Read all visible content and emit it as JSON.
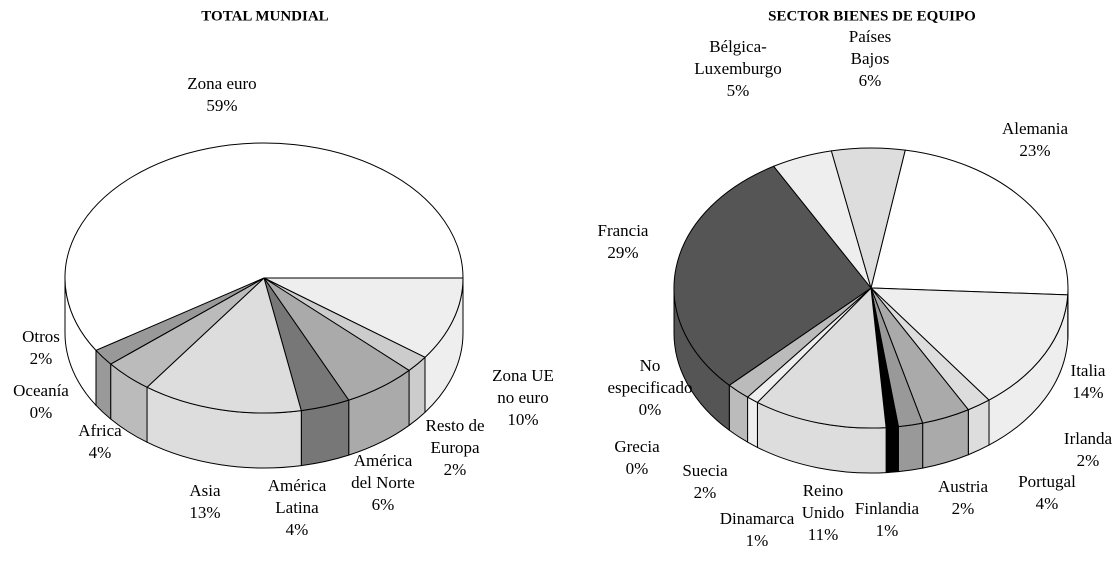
{
  "chart_data": [
    {
      "type": "pie",
      "title": "TOTAL MUNDIAL",
      "categories": [
        "Zona UE\nno euro",
        "Resto de\nEuropa",
        "América\ndel Norte",
        "América\nLatina",
        "Asia",
        "Africa",
        "Oceanía",
        "Otros",
        "Zona euro"
      ],
      "values": [
        10,
        2,
        6,
        4,
        13,
        4,
        0,
        2,
        59
      ],
      "value_labels": [
        "10%",
        "2%",
        "6%",
        "4%",
        "13%",
        "4%",
        "0%",
        "2%",
        "59%"
      ],
      "colors": [
        "#eeeeee",
        "#cccccc",
        "#aaaaaa",
        "#777777",
        "#dddddd",
        "#bbbbbb",
        "#999999",
        "#999999",
        "#ffffff"
      ]
    },
    {
      "type": "pie",
      "title": "SECTOR BIENES DE EQUIPO",
      "categories": [
        "Alemania",
        "Italia",
        "Irlanda",
        "Portugal",
        "Austria",
        "Finlandia",
        "Reino\nUnido",
        "Dinamarca",
        "Suecia",
        "Grecia",
        "No\nespecificado",
        "Francia",
        "Bélgica-\nLuxemburgo",
        "Países\nBajos"
      ],
      "values": [
        23,
        14,
        2,
        4,
        2,
        1,
        11,
        1,
        2,
        0,
        0,
        29,
        5,
        6
      ],
      "value_labels": [
        "23%",
        "14%",
        "2%",
        "4%",
        "2%",
        "1%",
        "11%",
        "1%",
        "2%",
        "0%",
        "0%",
        "29%",
        "5%",
        "6%"
      ],
      "colors": [
        "#ffffff",
        "#eeeeee",
        "#dddddd",
        "#aaaaaa",
        "#999999",
        "#000000",
        "#dddddd",
        "#eeeeee",
        "#bbbbbb",
        "#999999",
        "#888888",
        "#555555",
        "#eeeeee",
        "#dddddd"
      ]
    }
  ]
}
